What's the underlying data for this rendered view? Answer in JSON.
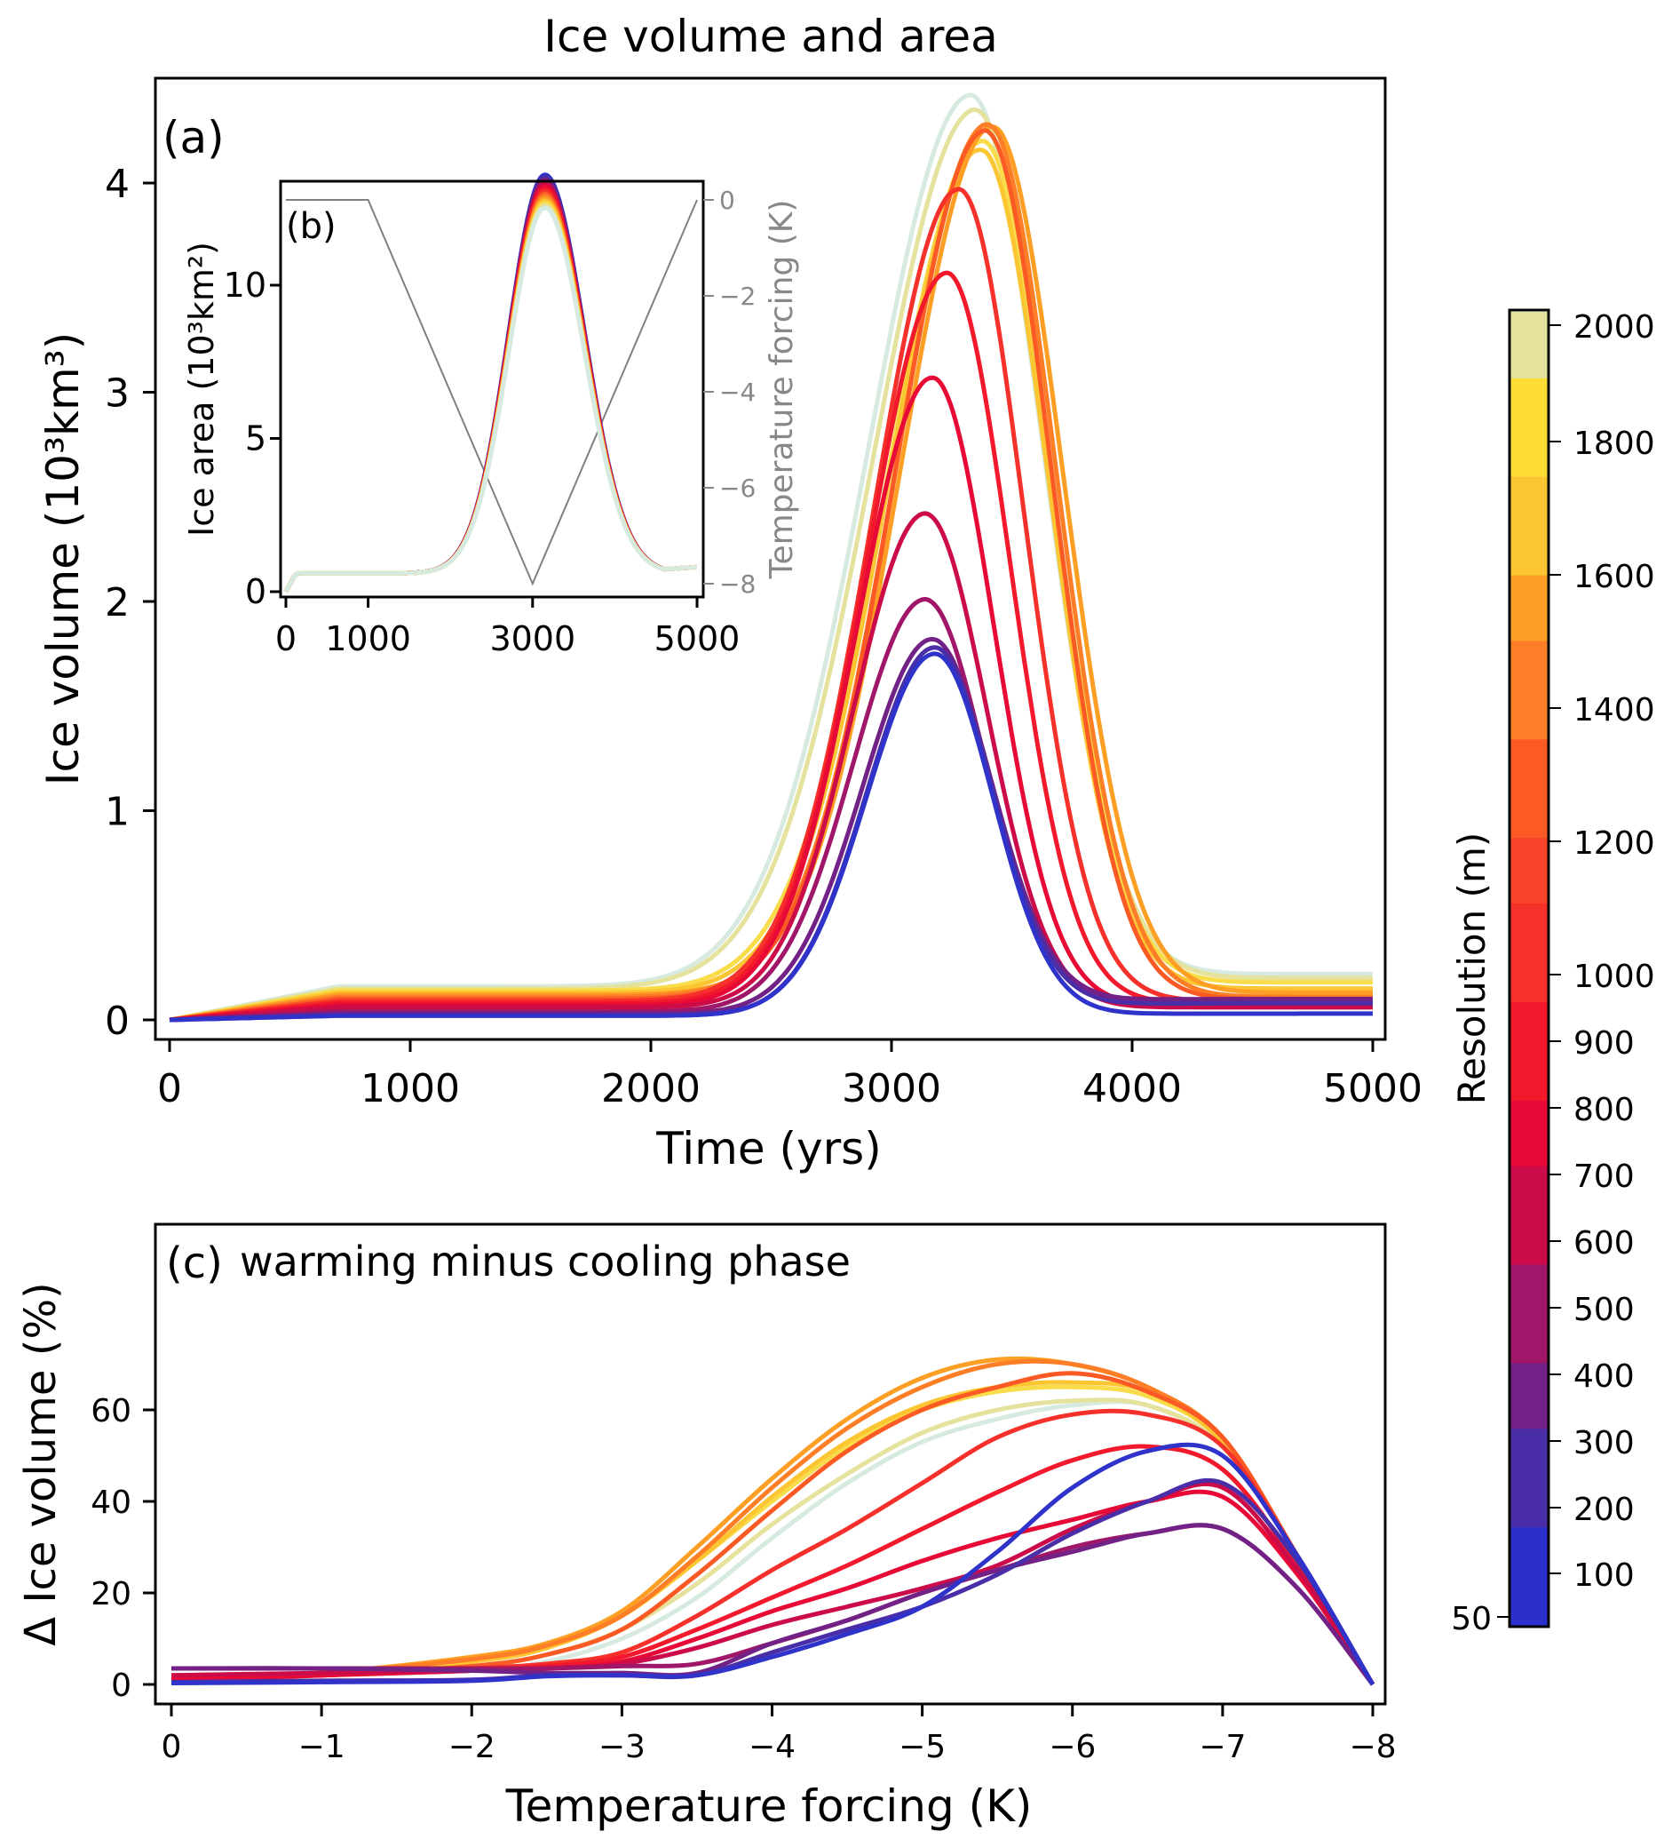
{
  "figure": {
    "title": "Ice volume and area"
  },
  "chart_data": [
    {
      "id": "a",
      "type": "line",
      "panel_label": "(a)",
      "title": "Ice volume and area",
      "xlabel": "Time (yrs)",
      "ylabel": "Ice volume (10³km³)",
      "xlim": [
        -50,
        5050
      ],
      "ylim": [
        -0.1,
        4.45
      ],
      "xticks": [
        0,
        1000,
        2000,
        3000,
        4000,
        5000
      ],
      "xtick_labels": [
        "0",
        "1000",
        "2000",
        "3000",
        "4000",
        "5000"
      ],
      "yticks": [
        0,
        1,
        2,
        3,
        4
      ],
      "ytick_labels": [
        "0",
        "1",
        "2",
        "3",
        "4"
      ],
      "grid": false,
      "series": [
        {
          "name": "2000 m",
          "resolution": 2000,
          "color": "#d6eadf",
          "peak_time": 3330,
          "peak": 4.42,
          "start_plateau": 0.16,
          "end": 0.22,
          "rise_width": 600,
          "fall_width": 420
        },
        {
          "name": "1800 m",
          "resolution": 1800,
          "color": "#e4e29c",
          "peak_time": 3350,
          "peak": 4.35,
          "start_plateau": 0.15,
          "end": 0.2,
          "rise_width": 600,
          "fall_width": 420
        },
        {
          "name": "1600 m",
          "resolution": 1600,
          "color": "#f8dc4a",
          "peak_time": 3380,
          "peak": 4.2,
          "start_plateau": 0.14,
          "end": 0.18,
          "rise_width": 560,
          "fall_width": 400
        },
        {
          "name": "1400 m",
          "resolution": 1400,
          "color": "#fcc532",
          "peak_time": 3370,
          "peak": 4.16,
          "start_plateau": 0.13,
          "end": 0.15,
          "rise_width": 540,
          "fall_width": 400
        },
        {
          "name": "1200 m",
          "resolution": 1200,
          "color": "#fd9f24",
          "peak_time": 3420,
          "peak": 4.27,
          "start_plateau": 0.12,
          "end": 0.13,
          "rise_width": 540,
          "fall_width": 410
        },
        {
          "name": "1000 m",
          "resolution": 1000,
          "color": "#fd7e26",
          "peak_time": 3400,
          "peak": 4.28,
          "start_plateau": 0.11,
          "end": 0.11,
          "rise_width": 540,
          "fall_width": 400
        },
        {
          "name": "900 m",
          "resolution": 900,
          "color": "#fb5a25",
          "peak_time": 3390,
          "peak": 4.25,
          "start_plateau": 0.1,
          "end": 0.1,
          "rise_width": 530,
          "fall_width": 390
        },
        {
          "name": "700 m",
          "resolution": 700,
          "color": "#f6302a",
          "peak_time": 3280,
          "peak": 3.97,
          "start_plateau": 0.09,
          "end": 0.09,
          "rise_width": 500,
          "fall_width": 380
        },
        {
          "name": "600 m",
          "resolution": 600,
          "color": "#f2192c",
          "peak_time": 3230,
          "peak": 3.57,
          "start_plateau": 0.08,
          "end": 0.08,
          "rise_width": 470,
          "fall_width": 370
        },
        {
          "name": "500 m",
          "resolution": 500,
          "color": "#e80a36",
          "peak_time": 3170,
          "peak": 3.07,
          "start_plateau": 0.07,
          "end": 0.07,
          "rise_width": 440,
          "fall_width": 360
        },
        {
          "name": "400 m",
          "resolution": 400,
          "color": "#cc0c48",
          "peak_time": 3140,
          "peak": 2.42,
          "start_plateau": 0.06,
          "end": 0.06,
          "rise_width": 420,
          "fall_width": 360
        },
        {
          "name": "300 m",
          "resolution": 300,
          "color": "#a01668",
          "peak_time": 3140,
          "peak": 2.01,
          "start_plateau": 0.04,
          "end": 0.1,
          "rise_width": 420,
          "fall_width": 350
        },
        {
          "name": "200 m",
          "resolution": 200,
          "color": "#722286",
          "peak_time": 3170,
          "peak": 1.82,
          "start_plateau": 0.03,
          "end": 0.1,
          "rise_width": 410,
          "fall_width": 350
        },
        {
          "name": "100 m",
          "resolution": 100,
          "color": "#4a2ea8",
          "peak_time": 3180,
          "peak": 1.78,
          "start_plateau": 0.02,
          "end": 0.08,
          "rise_width": 400,
          "fall_width": 340
        },
        {
          "name": "50 m",
          "resolution": 50,
          "color": "#2f33c9",
          "peak_time": 3180,
          "peak": 1.75,
          "start_plateau": 0.02,
          "end": 0.03,
          "rise_width": 400,
          "fall_width": 340
        }
      ]
    },
    {
      "id": "b",
      "type": "line",
      "panel_label": "(b)",
      "xlabel": "",
      "ylabel": "Ice area (10³km²)",
      "y2label": "Temperature forcing (K)",
      "xlim": [
        -100,
        5100
      ],
      "ylim": [
        -0.5,
        13.8
      ],
      "y2lim": [
        -8.4,
        0.4
      ],
      "xticks": [
        0,
        1000,
        3000,
        5000
      ],
      "xtick_labels": [
        "0",
        "1000",
        "3000",
        "5000"
      ],
      "yticks": [
        0,
        5,
        10
      ],
      "ytick_labels": [
        "0",
        "5",
        "10"
      ],
      "y2ticks": [
        0,
        -2,
        -4,
        -6,
        -8
      ],
      "y2tick_labels": [
        "0",
        "−2",
        "−4",
        "−6",
        "−8"
      ],
      "forcing": {
        "color": "#808080",
        "x": [
          0,
          1000,
          3000,
          5000
        ],
        "y": [
          0,
          0,
          -8,
          0
        ]
      },
      "area_peak_range": [
        11.8,
        13.6
      ],
      "area_peak_time": 3150,
      "area_plateau": 0.6,
      "area_end": 0.8
    },
    {
      "id": "c",
      "type": "line",
      "panel_label": "(c)",
      "annotation": "warming minus cooling phase",
      "xlabel": "Temperature forcing (K)",
      "ylabel": "Δ Ice volume (%)",
      "xlim": [
        0.2,
        -8.2
      ],
      "ylim": [
        -3,
        76
      ],
      "xticks": [
        0,
        -1,
        -2,
        -3,
        -4,
        -5,
        -6,
        -7,
        -8
      ],
      "xtick_labels": [
        "0",
        "−1",
        "−2",
        "−3",
        "−4",
        "−5",
        "−6",
        "−7",
        "−8"
      ],
      "yticks": [
        0,
        20,
        40,
        60
      ],
      "ytick_labels": [
        "0",
        "20",
        "40",
        "60"
      ],
      "grid": false,
      "series": [
        {
          "name": "2000 m",
          "color": "#d6eadf",
          "x": [
            0,
            -1,
            -2,
            -2.5,
            -3,
            -3.5,
            -4,
            -4.5,
            -5,
            -5.5,
            -6,
            -6.5,
            -7,
            -7.5,
            -8
          ],
          "y": [
            1.5,
            2,
            3,
            5,
            10,
            19,
            32,
            44,
            53,
            58,
            61,
            61,
            52,
            28,
            0
          ]
        },
        {
          "name": "1800 m",
          "color": "#e4e29c",
          "x": [
            0,
            -1,
            -2,
            -2.5,
            -3,
            -3.5,
            -4,
            -4.5,
            -5,
            -5.5,
            -6,
            -6.5,
            -7,
            -7.5,
            -8
          ],
          "y": [
            2,
            2.5,
            4,
            6.5,
            12,
            22,
            35,
            46,
            55,
            60,
            62,
            61,
            52,
            28,
            0
          ]
        },
        {
          "name": "1600 m",
          "color": "#f8dc4a",
          "x": [
            0,
            -1,
            -2,
            -2.5,
            -3,
            -3.5,
            -4,
            -4.5,
            -5,
            -5.5,
            -6,
            -6.5,
            -7,
            -7.5,
            -8
          ],
          "y": [
            1.5,
            2.5,
            5,
            8,
            15,
            27,
            40,
            52,
            60,
            64,
            65,
            63,
            53,
            28,
            0
          ]
        },
        {
          "name": "1400 m",
          "color": "#fcc532",
          "x": [
            0,
            -1,
            -2,
            -2.5,
            -3,
            -3.5,
            -4,
            -4.5,
            -5,
            -5.5,
            -6,
            -6.5,
            -7,
            -7.5,
            -8
          ],
          "y": [
            1.5,
            2.5,
            5,
            8,
            15,
            27,
            41,
            53,
            61,
            65,
            66,
            64,
            53,
            28,
            0
          ]
        },
        {
          "name": "1200 m",
          "color": "#fd9f24",
          "x": [
            0,
            -1,
            -2,
            -2.5,
            -3,
            -3.5,
            -4,
            -4.5,
            -5,
            -5.5,
            -6,
            -6.5,
            -7,
            -7.5,
            -8
          ],
          "y": [
            1,
            2.5,
            6,
            9,
            16,
            30,
            45,
            58,
            67,
            71,
            70,
            65,
            54,
            28,
            0
          ]
        },
        {
          "name": "1000 m",
          "color": "#fd7e26",
          "x": [
            0,
            -1,
            -2,
            -2.5,
            -3,
            -3.5,
            -4,
            -4.5,
            -5,
            -5.5,
            -6,
            -6.5,
            -7,
            -7.5,
            -8
          ],
          "y": [
            1,
            2.5,
            5.5,
            8.5,
            15,
            28,
            43,
            56,
            65,
            70,
            70,
            65,
            54,
            28,
            0
          ]
        },
        {
          "name": "900 m",
          "color": "#fb5a25",
          "x": [
            0,
            -1,
            -2,
            -2.5,
            -3,
            -3.5,
            -4,
            -4.5,
            -5,
            -5.5,
            -6,
            -6.5,
            -7,
            -7.5,
            -8
          ],
          "y": [
            1,
            2,
            4,
            6.5,
            12,
            24,
            38,
            51,
            60,
            65,
            68,
            64,
            54,
            28,
            0
          ]
        },
        {
          "name": "700 m",
          "color": "#f6302a",
          "x": [
            0,
            -1,
            -2,
            -2.5,
            -3,
            -3.5,
            -4,
            -4.5,
            -5,
            -5.5,
            -6,
            -6.5,
            -7,
            -7.5,
            -8
          ],
          "y": [
            1,
            2,
            3.5,
            4.5,
            7,
            15,
            25,
            34,
            44,
            54,
            59,
            59,
            52,
            28,
            0
          ]
        },
        {
          "name": "600 m",
          "color": "#f2192c",
          "x": [
            0,
            -1,
            -2,
            -2.5,
            -3,
            -3.5,
            -4,
            -4.5,
            -5,
            -5.5,
            -6,
            -6.5,
            -7,
            -7.5,
            -8
          ],
          "y": [
            1,
            2,
            3,
            4,
            6,
            12,
            19,
            26,
            34,
            42,
            49,
            52,
            47,
            26,
            0
          ]
        },
        {
          "name": "500 m",
          "color": "#e80a36",
          "x": [
            0,
            -1,
            -2,
            -2.5,
            -3,
            -3.5,
            -4,
            -4.5,
            -5,
            -5.5,
            -6,
            -6.5,
            -7,
            -7.5,
            -8
          ],
          "y": [
            1,
            2,
            3,
            3.5,
            5,
            10,
            16,
            21,
            27,
            32,
            36,
            40,
            41,
            24,
            0
          ]
        },
        {
          "name": "400 m",
          "color": "#cc0c48",
          "x": [
            0,
            -1,
            -2,
            -2.5,
            -3,
            -3.5,
            -4,
            -4.5,
            -5,
            -5.5,
            -6,
            -6.5,
            -7,
            -7.5,
            -8
          ],
          "y": [
            2,
            2.5,
            3,
            3.5,
            4.5,
            8,
            13,
            17,
            21,
            26,
            34,
            40,
            43,
            25,
            0
          ]
        },
        {
          "name": "300 m",
          "color": "#a01668",
          "x": [
            0,
            -1,
            -2,
            -2.5,
            -3,
            -3.5,
            -4,
            -4.5,
            -5,
            -5.5,
            -6,
            -6.5,
            -7,
            -7.5,
            -8
          ],
          "y": [
            3.5,
            3.5,
            3.5,
            3.5,
            4,
            4.5,
            9,
            14,
            20,
            25,
            30,
            33,
            34,
            21,
            0
          ]
        },
        {
          "name": "200 m",
          "color": "#722286",
          "x": [
            0,
            -1,
            -2,
            -2.5,
            -3,
            -3.5,
            -4,
            -4.5,
            -5,
            -5.5,
            -6,
            -6.5,
            -7,
            -7.5,
            -8
          ],
          "y": [
            3.5,
            3.5,
            3,
            2.5,
            2.5,
            2.5,
            9,
            14,
            20,
            25,
            29,
            33,
            34,
            21,
            0
          ]
        },
        {
          "name": "100 m",
          "color": "#4a2ea8",
          "x": [
            0,
            -1,
            -2,
            -2.5,
            -3,
            -3.5,
            -4,
            -4.5,
            -5,
            -5.5,
            -6,
            -6.5,
            -7,
            -7.5,
            -8
          ],
          "y": [
            0.5,
            0.8,
            1,
            2,
            2,
            2,
            7,
            12,
            17,
            24,
            33,
            40,
            44,
            27,
            0
          ]
        },
        {
          "name": "50 m",
          "color": "#2f33c9",
          "x": [
            0,
            -1,
            -2,
            -2.5,
            -3,
            -3.5,
            -4,
            -4.5,
            -5,
            -5.5,
            -6,
            -6.5,
            -7,
            -7.5,
            -8
          ],
          "y": [
            0.3,
            0.5,
            0.8,
            1.8,
            2,
            2,
            6,
            11,
            17,
            29,
            43,
            51,
            50,
            28,
            0
          ]
        }
      ]
    },
    {
      "id": "colorbar",
      "type": "colorbar",
      "label": "Resolution (m)",
      "ticks": [
        50,
        100,
        200,
        300,
        400,
        500,
        600,
        700,
        800,
        900,
        1000,
        1200,
        1400,
        1600,
        1800,
        2000
      ],
      "tick_labels": [
        "50",
        "100",
        "200",
        "300",
        "400",
        "500",
        "600",
        "700",
        "800",
        "900",
        "1000",
        "1200",
        "1400",
        "1600",
        "1800",
        "2000"
      ],
      "stops": [
        "#2b2fcc",
        "#4a2ea8",
        "#722286",
        "#a01668",
        "#cc0c48",
        "#e80a36",
        "#f2192c",
        "#f6302a",
        "#f8442a",
        "#fb5a25",
        "#fd7e26",
        "#fd9f24",
        "#fcc532",
        "#fddc34",
        "#e4e29c",
        "#d6eadf"
      ]
    }
  ]
}
